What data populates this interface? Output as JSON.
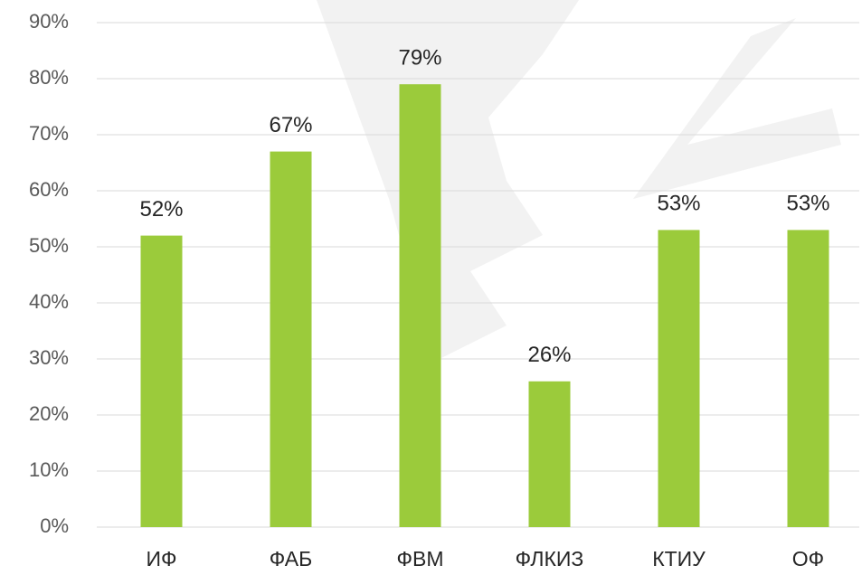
{
  "chart_data": {
    "type": "bar",
    "categories": [
      "ИФ",
      "ФАБ",
      "ФВМ",
      "ФЛКИЗ",
      "КТИУ",
      "ОФ"
    ],
    "values": [
      52,
      67,
      79,
      26,
      53,
      53
    ],
    "value_labels": [
      "52%",
      "67%",
      "79%",
      "26%",
      "53%",
      "53%"
    ],
    "color": "#9bcb3b",
    "ylim": [
      0,
      90
    ],
    "yticks": [
      {
        "value": 0,
        "label": "0%"
      },
      {
        "value": 10,
        "label": "10%"
      },
      {
        "value": 20,
        "label": "20%"
      },
      {
        "value": 30,
        "label": "30%"
      },
      {
        "value": 40,
        "label": "40%"
      },
      {
        "value": 50,
        "label": "50%"
      },
      {
        "value": 60,
        "label": "60%"
      },
      {
        "value": 70,
        "label": "70%"
      },
      {
        "value": 80,
        "label": "80%"
      },
      {
        "value": 90,
        "label": "90%"
      }
    ],
    "grid": true
  }
}
